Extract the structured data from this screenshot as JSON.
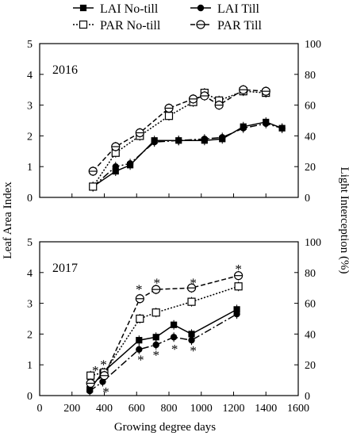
{
  "legend": {
    "items": [
      {
        "label": "LAI No-till",
        "marker": "square-filled",
        "line": "solid"
      },
      {
        "label": "LAI Till",
        "marker": "circle-filled",
        "line": "dash-dot"
      },
      {
        "label": "PAR No-till",
        "marker": "square-open",
        "line": "dotted"
      },
      {
        "label": "PAR Till",
        "marker": "circle-open",
        "line": "dashed"
      }
    ]
  },
  "chart_data": [
    {
      "type": "line",
      "panel_label": "2016",
      "xlabel": "",
      "ylabel": "Leaf Area Index",
      "ylabel_right": "Light Interception (%)",
      "xlim": [
        0,
        1600
      ],
      "ylim": [
        0,
        5
      ],
      "ylim_right": [
        0,
        100
      ],
      "yticks": [
        "0",
        "1",
        "2",
        "3",
        "4",
        "5"
      ],
      "yticks_right": [
        "0",
        "20",
        "40",
        "60",
        "80",
        "100"
      ],
      "series": [
        {
          "name": "LAI No-till",
          "axis": "left",
          "x": [
            330,
            470,
            560,
            710,
            860,
            1020,
            1130,
            1260,
            1400,
            1500
          ],
          "y": [
            0.35,
            0.85,
            1.05,
            1.85,
            1.85,
            1.85,
            1.9,
            2.3,
            2.45,
            2.25
          ]
        },
        {
          "name": "LAI Till",
          "axis": "left",
          "x": [
            330,
            470,
            560,
            710,
            860,
            1020,
            1130,
            1260,
            1400,
            1500
          ],
          "y": [
            0.35,
            1.0,
            1.1,
            1.8,
            1.85,
            1.9,
            1.95,
            2.25,
            2.4,
            2.25
          ]
        },
        {
          "name": "PAR No-till",
          "axis": "right",
          "x": [
            330,
            470,
            620,
            800,
            950,
            1020,
            1110,
            1260,
            1400
          ],
          "y": [
            7,
            29,
            40,
            53,
            62,
            68,
            63,
            69,
            68
          ]
        },
        {
          "name": "PAR Till",
          "axis": "right",
          "x": [
            330,
            470,
            620,
            800,
            950,
            1020,
            1110,
            1260,
            1400
          ],
          "y": [
            17,
            33,
            42,
            58,
            64,
            66,
            60,
            70,
            69
          ]
        }
      ]
    },
    {
      "type": "line",
      "panel_label": "2017",
      "xlabel": "Growing degree days",
      "ylabel": "Leaf Area Index",
      "ylabel_right": "Light Interception (%)",
      "xlim": [
        0,
        1600
      ],
      "ylim": [
        0,
        5
      ],
      "ylim_right": [
        0,
        100
      ],
      "xticks": [
        "0",
        "200",
        "400",
        "600",
        "800",
        "1000",
        "1200",
        "1400",
        "1600"
      ],
      "yticks": [
        "0",
        "1",
        "2",
        "3",
        "4",
        "5"
      ],
      "yticks_right": [
        "0",
        "20",
        "40",
        "60",
        "80",
        "100"
      ],
      "series": [
        {
          "name": "LAI No-till",
          "axis": "left",
          "x": [
            310,
            390,
            615,
            720,
            830,
            940,
            1220
          ],
          "y": [
            0.2,
            0.75,
            1.8,
            1.9,
            2.3,
            2.0,
            2.8
          ]
        },
        {
          "name": "LAI Till",
          "axis": "left",
          "x": [
            310,
            390,
            615,
            720,
            830,
            940,
            1220
          ],
          "y": [
            0.15,
            0.45,
            1.5,
            1.65,
            1.9,
            1.8,
            2.65
          ]
        },
        {
          "name": "PAR No-till",
          "axis": "right",
          "x": [
            315,
            400,
            620,
            720,
            940,
            1230
          ],
          "y": [
            13,
            15,
            50,
            54,
            61,
            71
          ]
        },
        {
          "name": "PAR Till",
          "axis": "right",
          "x": [
            315,
            400,
            620,
            720,
            940,
            1230
          ],
          "y": [
            8,
            13,
            63,
            69,
            70,
            78
          ]
        }
      ],
      "annotations": [
        {
          "text": "*",
          "x": 345,
          "y": 0.9
        },
        {
          "text": "*",
          "x": 395,
          "y": 1.1
        },
        {
          "text": "*",
          "x": 410,
          "y": 0.2
        },
        {
          "text": "*",
          "x": 615,
          "y": 3.55
        },
        {
          "text": "*",
          "x": 725,
          "y": 3.75
        },
        {
          "text": "*",
          "x": 950,
          "y": 3.75
        },
        {
          "text": "*",
          "x": 1230,
          "y": 4.2
        },
        {
          "text": "*",
          "x": 625,
          "y": 1.25
        },
        {
          "text": "*",
          "x": 720,
          "y": 1.4
        },
        {
          "text": "*",
          "x": 835,
          "y": 1.6
        },
        {
          "text": "*",
          "x": 950,
          "y": 1.55
        }
      ]
    }
  ]
}
